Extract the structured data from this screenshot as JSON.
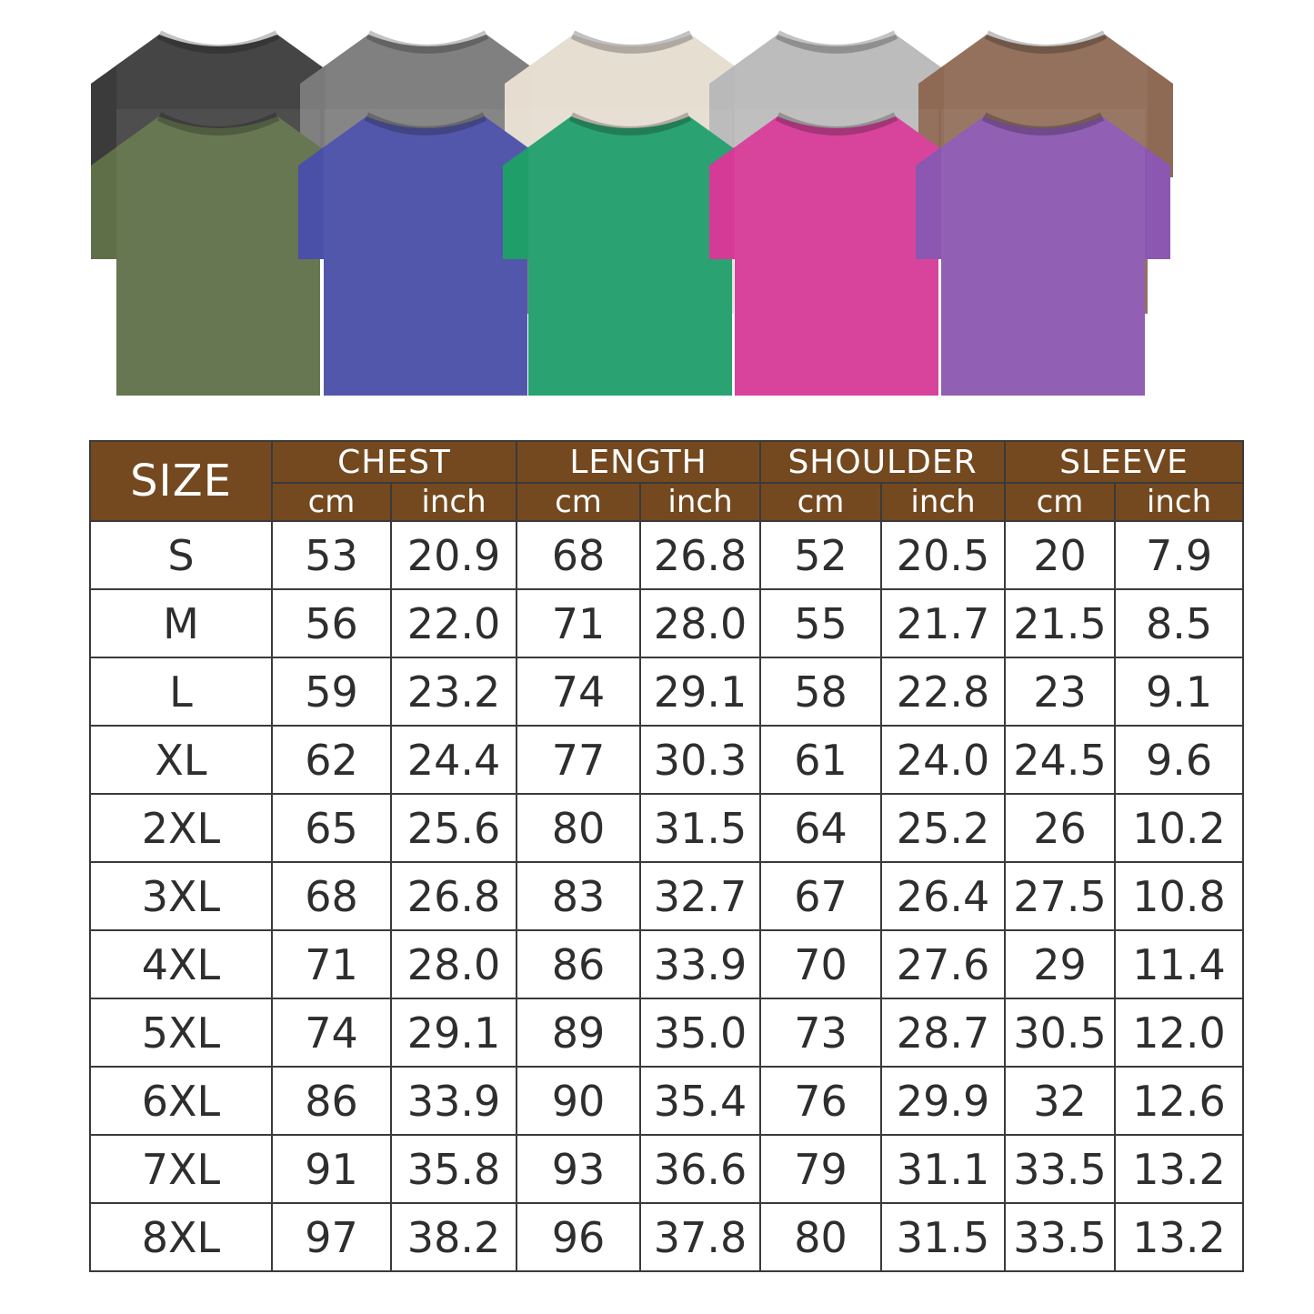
{
  "shirts": {
    "back_row": [
      {
        "color_name": "black",
        "hex": "#3b3b3b"
      },
      {
        "color_name": "dark-gray",
        "hex": "#7a7a7a"
      },
      {
        "color_name": "beige",
        "hex": "#e6ddd0"
      },
      {
        "color_name": "light-gray",
        "hex": "#b9b9b9"
      },
      {
        "color_name": "brown",
        "hex": "#8e6a55"
      }
    ],
    "front_row": [
      {
        "color_name": "olive",
        "hex": "#5f7048"
      },
      {
        "color_name": "blue",
        "hex": "#4a4fa8"
      },
      {
        "color_name": "green",
        "hex": "#1f9e6a"
      },
      {
        "color_name": "pink",
        "hex": "#d63a97"
      },
      {
        "color_name": "purple",
        "hex": "#8c57b0"
      }
    ]
  },
  "table": {
    "header_color": "#74491f",
    "size_label": "SIZE",
    "groups": [
      "CHEST",
      "LENGTH",
      "SHOULDER",
      "SLEEVE"
    ],
    "units": [
      "cm",
      "inch"
    ],
    "rows": [
      [
        "S",
        "53",
        "20.9",
        "68",
        "26.8",
        "52",
        "20.5",
        "20",
        "7.9"
      ],
      [
        "M",
        "56",
        "22.0",
        "71",
        "28.0",
        "55",
        "21.7",
        "21.5",
        "8.5"
      ],
      [
        "L",
        "59",
        "23.2",
        "74",
        "29.1",
        "58",
        "22.8",
        "23",
        "9.1"
      ],
      [
        "XL",
        "62",
        "24.4",
        "77",
        "30.3",
        "61",
        "24.0",
        "24.5",
        "9.6"
      ],
      [
        "2XL",
        "65",
        "25.6",
        "80",
        "31.5",
        "64",
        "25.2",
        "26",
        "10.2"
      ],
      [
        "3XL",
        "68",
        "26.8",
        "83",
        "32.7",
        "67",
        "26.4",
        "27.5",
        "10.8"
      ],
      [
        "4XL",
        "71",
        "28.0",
        "86",
        "33.9",
        "70",
        "27.6",
        "29",
        "11.4"
      ],
      [
        "5XL",
        "74",
        "29.1",
        "89",
        "35.0",
        "73",
        "28.7",
        "30.5",
        "12.0"
      ],
      [
        "6XL",
        "86",
        "33.9",
        "90",
        "35.4",
        "76",
        "29.9",
        "32",
        "12.6"
      ],
      [
        "7XL",
        "91",
        "35.8",
        "93",
        "36.6",
        "79",
        "31.1",
        "33.5",
        "13.2"
      ],
      [
        "8XL",
        "97",
        "38.2",
        "96",
        "37.8",
        "80",
        "31.5",
        "33.5",
        "13.2"
      ]
    ]
  }
}
